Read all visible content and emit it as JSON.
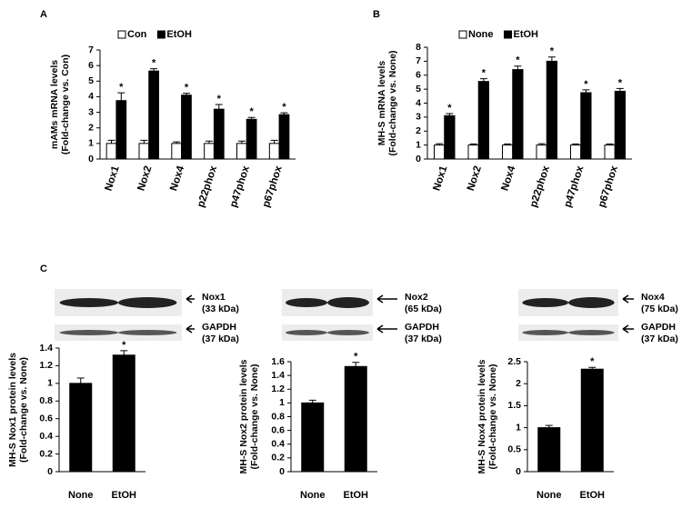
{
  "chart_data": [
    {
      "type": "bar",
      "panel_label": "A",
      "legend": "top",
      "ylabel": [
        "mAMs mRNA levels",
        "(Fold-change vs. Con)"
      ],
      "categories": [
        "Nox1",
        "Nox2",
        "Nox4",
        "p22phox",
        "p47phox",
        "p67phox"
      ],
      "series": [
        {
          "name": "Con",
          "color": "#ffffff",
          "values": [
            1,
            1,
            1,
            1,
            1,
            1
          ],
          "errors": [
            0.2,
            0.2,
            0.1,
            0.15,
            0.15,
            0.2
          ]
        },
        {
          "name": "EtOH",
          "color": "#000000",
          "values": [
            3.75,
            5.65,
            4.1,
            3.2,
            2.55,
            2.85
          ],
          "errors": [
            0.5,
            0.15,
            0.12,
            0.3,
            0.12,
            0.12
          ],
          "significance": [
            "*",
            "*",
            "*",
            "*",
            "*",
            "*"
          ]
        }
      ],
      "ylim": [
        0,
        7
      ],
      "yticks": [
        0,
        1,
        2,
        3,
        4,
        5,
        6,
        7
      ]
    },
    {
      "type": "bar",
      "panel_label": "B",
      "legend": "top",
      "ylabel": [
        "MH-S mRNA levels",
        "(Fold-change vs. None)"
      ],
      "categories": [
        "Nox1",
        "Nox2",
        "Nox4",
        "p22phox",
        "p47phox",
        "p67phox"
      ],
      "series": [
        {
          "name": "None",
          "color": "#ffffff",
          "values": [
            1,
            1,
            1,
            1,
            1,
            1
          ],
          "errors": [
            0.1,
            0.08,
            0.08,
            0.1,
            0.08,
            0.08
          ]
        },
        {
          "name": "EtOH",
          "color": "#000000",
          "values": [
            3.1,
            5.55,
            6.4,
            7.0,
            4.75,
            4.85
          ],
          "errors": [
            0.15,
            0.2,
            0.25,
            0.3,
            0.2,
            0.2
          ],
          "significance": [
            "*",
            "*",
            "*",
            "*",
            "*",
            "*"
          ]
        }
      ],
      "ylim": [
        0,
        8
      ],
      "yticks": [
        0,
        1,
        2,
        3,
        4,
        5,
        6,
        7,
        8
      ]
    },
    {
      "type": "bar",
      "panel_label": "C",
      "blots": [
        {
          "label": "Nox1",
          "size": "(33 kDa)"
        },
        {
          "label": "GAPDH",
          "size": "(37 kDa)"
        }
      ],
      "ylabel": [
        "MH-S Nox1 protein levels",
        "(Fold-change vs. None)"
      ],
      "categories": [
        "None",
        "EtOH"
      ],
      "series": [
        {
          "color": "#000000",
          "values": [
            1,
            1.32
          ],
          "errors": [
            0.06,
            0.05
          ],
          "significance": [
            null,
            "*"
          ]
        }
      ],
      "ylim": [
        0,
        1.4
      ],
      "yticks": [
        0,
        0.2,
        0.4,
        0.6,
        0.8,
        1,
        1.2,
        1.4
      ]
    },
    {
      "type": "bar",
      "blots": [
        {
          "label": "Nox2",
          "size": "(65 kDa)"
        },
        {
          "label": "GAPDH",
          "size": "(37 kDa)"
        }
      ],
      "ylabel": [
        "MH-S Nox2 protein levels",
        "(Fold-change vs. None)"
      ],
      "categories": [
        "None",
        "EtOH"
      ],
      "series": [
        {
          "color": "#000000",
          "values": [
            1,
            1.53
          ],
          "errors": [
            0.04,
            0.06
          ],
          "significance": [
            null,
            "*"
          ]
        }
      ],
      "ylim": [
        0,
        1.6
      ],
      "yticks": [
        0,
        0.2,
        0.4,
        0.6,
        0.8,
        1,
        1.2,
        1.4,
        1.6
      ]
    },
    {
      "type": "bar",
      "blots": [
        {
          "label": "Nox4",
          "size": "(75 kDa)"
        },
        {
          "label": "GAPDH",
          "size": "(37 kDa)"
        }
      ],
      "ylabel": [
        "MH-S Nox4 protein levels",
        "(Fold-change vs. None)"
      ],
      "categories": [
        "None",
        "EtOH"
      ],
      "series": [
        {
          "color": "#000000",
          "values": [
            1,
            2.33
          ],
          "errors": [
            0.05,
            0.04
          ],
          "significance": [
            null,
            "*"
          ]
        }
      ],
      "ylim": [
        0,
        2.5
      ],
      "yticks": [
        0,
        0.5,
        1,
        1.5,
        2,
        2.5
      ]
    }
  ]
}
